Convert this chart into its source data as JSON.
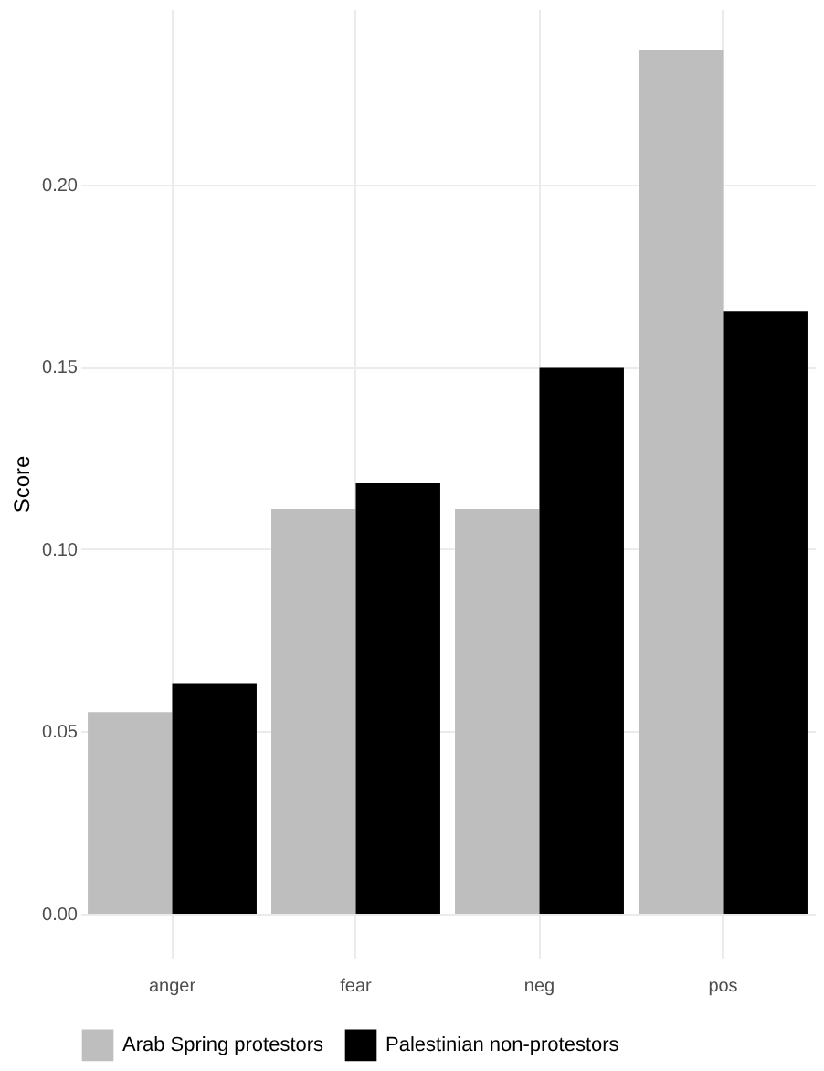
{
  "chart_data": {
    "type": "bar",
    "ylabel": "Score",
    "categories": [
      "anger",
      "fear",
      "neg",
      "pos"
    ],
    "series": [
      {
        "name": "Arab Spring protestors",
        "color": "#bebebe",
        "values": [
          0.0553,
          0.111,
          0.111,
          0.2367
        ]
      },
      {
        "name": "Palestinian non-protestors",
        "color": "#000000",
        "values": [
          0.0633,
          0.118,
          0.1497,
          0.1653
        ]
      }
    ],
    "ylim": [
      -0.012,
      0.248
    ],
    "yticks": [
      {
        "value": 0,
        "label": "0.00"
      },
      {
        "value": 0.05,
        "label": "0.05"
      },
      {
        "value": 0.1,
        "label": "0.10"
      },
      {
        "value": 0.15,
        "label": "0.15"
      },
      {
        "value": 0.2,
        "label": "0.20"
      }
    ],
    "grid": true,
    "legend": "bottom"
  }
}
